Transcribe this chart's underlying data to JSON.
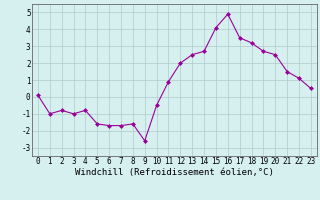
{
  "x": [
    0,
    1,
    2,
    3,
    4,
    5,
    6,
    7,
    8,
    9,
    10,
    11,
    12,
    13,
    14,
    15,
    16,
    17,
    18,
    19,
    20,
    21,
    22,
    23
  ],
  "y": [
    0.1,
    -1.0,
    -0.8,
    -1.0,
    -0.8,
    -1.6,
    -1.7,
    -1.7,
    -1.6,
    -2.6,
    -0.5,
    0.9,
    2.0,
    2.5,
    2.7,
    4.1,
    4.9,
    3.5,
    3.2,
    2.7,
    2.5,
    1.5,
    1.1,
    0.5
  ],
  "line_color": "#990099",
  "marker": "D",
  "marker_size": 2.5,
  "bg_color": "#d6f0f0",
  "grid_color": "#b0c8c8",
  "xlabel": "Windchill (Refroidissement éolien,°C)",
  "ylabel": "",
  "xlim": [
    -0.5,
    23.5
  ],
  "ylim": [
    -3.5,
    5.5
  ],
  "yticks": [
    -3,
    -2,
    -1,
    0,
    1,
    2,
    3,
    4,
    5
  ],
  "xticks": [
    0,
    1,
    2,
    3,
    4,
    5,
    6,
    7,
    8,
    9,
    10,
    11,
    12,
    13,
    14,
    15,
    16,
    17,
    18,
    19,
    20,
    21,
    22,
    23
  ],
  "tick_label_fontsize": 5.5,
  "xlabel_fontsize": 6.5
}
